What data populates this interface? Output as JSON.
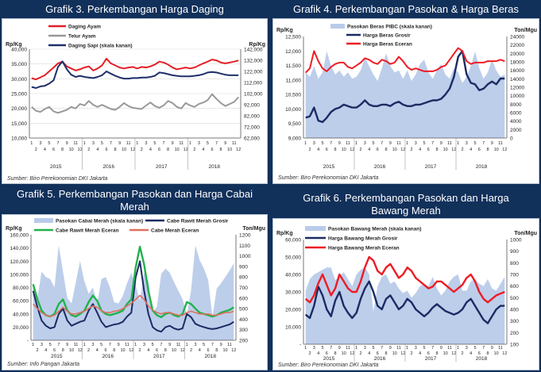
{
  "months": [
    "1",
    "2",
    "3",
    "4",
    "5",
    "6",
    "7",
    "8",
    "9",
    "10",
    "11",
    "12",
    "1",
    "2",
    "3",
    "4",
    "5",
    "6",
    "7",
    "8",
    "9",
    "10",
    "11",
    "12",
    "1",
    "2",
    "3",
    "4",
    "5",
    "6",
    "7",
    "8",
    "9",
    "10",
    "11",
    "12",
    "1",
    "2",
    "3",
    "4",
    "5",
    "6",
    "7",
    "8",
    "9",
    "10",
    "11",
    "12"
  ],
  "years": [
    "2015",
    "2016",
    "2017",
    "2018"
  ],
  "colors": {
    "background": "#11305a",
    "ayam": "#e41f26",
    "telur": "#999999",
    "sapi": "#1f2f6b",
    "pasokan": "#b9cbea",
    "grosir": "#1b2b63",
    "eceran": "#ee1c24",
    "rawit": "#1b2b63",
    "keriting": "#22b24c",
    "cabe_eceran": "#e07060",
    "bawang_grosir": "#1b2b63",
    "bawang_eceran": "#ee1c24"
  },
  "chart_data": [
    {
      "type": "line",
      "title": "Grafik 3. Perkembangan Harga Daging",
      "ylabel": "Rp/Kg",
      "y2label": "Rp/Kg",
      "source": "Sumber: Biro Perekonomian DKI Jakarta",
      "ylim": [
        10000,
        40000
      ],
      "yticks": [
        "10,000",
        "15,000",
        "20,000",
        "25,000",
        "30,000",
        "35,000",
        "40,000"
      ],
      "y2lim": [
        62000,
        142000
      ],
      "y2ticks": [
        "62,000",
        "72,000",
        "82,000",
        "92,000",
        "102,000",
        "112,000",
        "122,000",
        "132,000",
        "142,000"
      ],
      "series": [
        {
          "name": "Daging Ayam",
          "axis": "left",
          "values": [
            30200,
            29800,
            30500,
            31200,
            32500,
            33800,
            35200,
            35800,
            34200,
            33500,
            32800,
            33200,
            33800,
            34200,
            32800,
            33500,
            34500,
            36800,
            35200,
            34500,
            33800,
            33500,
            33800,
            34000,
            33500,
            34000,
            33800,
            34200,
            34800,
            35800,
            35500,
            34800,
            33800,
            33200,
            33500,
            33800,
            33500,
            33800,
            34500,
            35200,
            35800,
            36500,
            36200,
            35500,
            35200,
            35500,
            35800,
            36200
          ]
        },
        {
          "name": "Telur Ayam",
          "axis": "left",
          "values": [
            20500,
            19200,
            18800,
            19800,
            20500,
            19000,
            18500,
            19000,
            19500,
            20500,
            20000,
            21500,
            21000,
            22500,
            21200,
            20500,
            21200,
            20500,
            19800,
            19500,
            20500,
            21800,
            20800,
            20200,
            20000,
            19800,
            21000,
            22000,
            20800,
            20200,
            21000,
            22500,
            21800,
            20500,
            20000,
            21800,
            21000,
            20500,
            21500,
            22000,
            22800,
            24800,
            23200,
            21800,
            20800,
            21500,
            22200,
            23800
          ]
        },
        {
          "name": "Daging Sapi (skala kanan)",
          "axis": "right",
          "values": [
            108000,
            107000,
            108500,
            109000,
            111000,
            114000,
            126000,
            131000,
            124000,
            119000,
            117000,
            118000,
            117000,
            116500,
            116000,
            117000,
            118500,
            122000,
            120000,
            118000,
            116500,
            115500,
            115500,
            116000,
            116000,
            116500,
            116500,
            117000,
            118000,
            121000,
            120500,
            119500,
            118500,
            118000,
            117500,
            117500,
            117500,
            118000,
            118500,
            119500,
            121000,
            121500,
            121000,
            120000,
            119000,
            118500,
            118500,
            118500
          ]
        }
      ]
    },
    {
      "type": "line",
      "title": "Grafik 4. Perkembangan Pasokan & Harga Beras",
      "ylabel": "Rp/Kg",
      "y2label": "Ton/Mgu",
      "source": "Sumber: Biro Perekonomian DKI Jakarta",
      "ylim": [
        9000,
        12500
      ],
      "yticks": [
        "9,000",
        "9,500",
        "10,000",
        "10,500",
        "11,000",
        "11,500",
        "12,000",
        "12,500"
      ],
      "y2lim": [
        0,
        24000
      ],
      "y2ticks": [
        "0",
        "2000",
        "4000",
        "6000",
        "8000",
        "10000",
        "12000",
        "14000",
        "16000",
        "18000",
        "20000",
        "22000",
        "24000"
      ],
      "series": [
        {
          "name": "Pasokan Beras PIBC (skala kanan)",
          "axis": "right",
          "type": "area",
          "values": [
            15500,
            14500,
            17000,
            14000,
            15500,
            20500,
            17000,
            15000,
            16000,
            14500,
            15500,
            14000,
            14500,
            16000,
            19000,
            17000,
            15000,
            13500,
            16500,
            20000,
            17000,
            15500,
            16000,
            14000,
            16000,
            13500,
            15000,
            17500,
            18500,
            15500,
            14000,
            16000,
            17500,
            15000,
            14000,
            16500,
            15500,
            13000,
            14500,
            17000,
            20500,
            16500,
            14000,
            15500,
            18500,
            16000,
            14500,
            15000
          ]
        },
        {
          "name": "Harga Beras Grosir",
          "axis": "left",
          "values": [
            9700,
            9750,
            10050,
            9600,
            9550,
            9700,
            9900,
            10000,
            10050,
            10150,
            10100,
            10050,
            10050,
            10150,
            10300,
            10150,
            10100,
            10100,
            10150,
            10150,
            10100,
            10200,
            10250,
            10150,
            10100,
            10100,
            10150,
            10150,
            10200,
            10250,
            10300,
            10300,
            10350,
            10500,
            10700,
            11100,
            11800,
            12000,
            11200,
            10900,
            10850,
            10650,
            10700,
            10850,
            10950,
            10850,
            11050,
            11050
          ]
        },
        {
          "name": "Harga Beras Eceran",
          "axis": "left",
          "values": [
            11250,
            11400,
            12000,
            11650,
            11400,
            11300,
            11450,
            11550,
            11600,
            11600,
            11450,
            11400,
            11500,
            11600,
            11750,
            11700,
            11600,
            11550,
            11700,
            11650,
            11550,
            11600,
            11800,
            11650,
            11450,
            11350,
            11400,
            11350,
            11300,
            11300,
            11300,
            11350,
            11450,
            11500,
            11700,
            11900,
            12100,
            12000,
            11650,
            11550,
            11600,
            11600,
            11600,
            11650,
            11650,
            11650,
            11700,
            11650
          ]
        }
      ]
    },
    {
      "type": "line",
      "title": "Grafik 5. Perkembangan Pasokan dan Harga Cabai Merah",
      "ylabel": "Rp/Kg",
      "y2label": "Ton/Mgu",
      "source": "Sumber: Info Pangan Jakarta",
      "ylim": [
        0,
        160000
      ],
      "yticks": [
        "-",
        "20,000",
        "40,000",
        "60,000",
        "80,000",
        "100,000",
        "120,000",
        "140,000",
        "160,000"
      ],
      "y2lim": [
        200,
        1200
      ],
      "y2ticks": [
        "200",
        "300",
        "400",
        "500",
        "600",
        "700",
        "800",
        "900",
        "1000",
        "1100",
        "1200"
      ],
      "series": [
        {
          "name": "Pasokan Cabai Merah (skala kanan)",
          "axis": "right",
          "type": "area",
          "values": [
            720,
            600,
            850,
            800,
            780,
            700,
            1100,
            850,
            600,
            550,
            750,
            950,
            760,
            640,
            700,
            550,
            780,
            800,
            700,
            560,
            550,
            620,
            740,
            840,
            720,
            580,
            840,
            760,
            460,
            520,
            830,
            880,
            840,
            750,
            670,
            590,
            440,
            680,
            1100,
            960,
            880,
            770,
            420,
            690,
            740,
            800,
            860,
            930
          ]
        },
        {
          "name": "Cabe Rawit Merah Grosir",
          "axis": "left",
          "values": [
            75000,
            50000,
            30000,
            22000,
            18000,
            20000,
            40000,
            48000,
            30000,
            22000,
            25000,
            28000,
            30000,
            45000,
            55000,
            42000,
            28000,
            20000,
            22000,
            24000,
            25000,
            28000,
            36000,
            42000,
            95000,
            120000,
            75000,
            40000,
            20000,
            15000,
            13000,
            20000,
            22000,
            18000,
            16000,
            18000,
            40000,
            35000,
            25000,
            22000,
            20000,
            18000,
            17000,
            18000,
            20000,
            22000,
            24000,
            28000
          ]
        },
        {
          "name": "Cabe Rawit Merah Eceran",
          "axis": "left",
          "values": [
            85000,
            62000,
            45000,
            38000,
            36000,
            40000,
            55000,
            62000,
            45000,
            38000,
            36000,
            40000,
            45000,
            58000,
            68000,
            60000,
            45000,
            40000,
            38000,
            40000,
            42000,
            45000,
            55000,
            62000,
            110000,
            142000,
            115000,
            75000,
            45000,
            38000,
            35000,
            40000,
            42000,
            38000,
            36000,
            40000,
            58000,
            55000,
            48000,
            42000,
            40000,
            38000,
            36000,
            38000,
            42000,
            44000,
            46000,
            50000
          ]
        },
        {
          "name": "Cabe Merah Eceran",
          "axis": "left",
          "values": [
            55000,
            48000,
            42000,
            38000,
            36000,
            38000,
            44000,
            50000,
            44000,
            40000,
            40000,
            42000,
            44000,
            48000,
            52000,
            50000,
            45000,
            42000,
            42000,
            44000,
            45000,
            48000,
            52000,
            56000,
            62000,
            68000,
            62000,
            52000,
            46000,
            42000,
            40000,
            42000,
            42000,
            40000,
            38000,
            38000,
            42000,
            44000,
            42000,
            40000,
            40000,
            40000,
            38000,
            38000,
            40000,
            42000,
            42000,
            44000
          ]
        }
      ]
    },
    {
      "type": "line",
      "title": "Grafik 6. Perkembangan Pasokan dan Harga Bawang Merah",
      "ylabel": "Rp/Kg",
      "y2label": "Ton/Mgu",
      "source": "Sumber: Biro Perekonomian DKI Jakarta",
      "ylim": [
        0,
        60000
      ],
      "yticks": [
        "-",
        "10,000",
        "20,000",
        "30,000",
        "40,000",
        "50,000",
        "60,000"
      ],
      "y2lim": [
        100,
        1000
      ],
      "y2ticks": [
        "100",
        "200",
        "300",
        "400",
        "500",
        "600",
        "700",
        "800",
        "900",
        "1000"
      ],
      "series": [
        {
          "name": "Pasokan Bawang Merah (skala kanan)",
          "axis": "right",
          "type": "area",
          "values": [
            560,
            660,
            700,
            720,
            740,
            760,
            760,
            650,
            680,
            720,
            660,
            600,
            700,
            740,
            760,
            700,
            380,
            600,
            680,
            700,
            620,
            640,
            580,
            540,
            560,
            500,
            540,
            600,
            620,
            600,
            680,
            580,
            520,
            560,
            640,
            680,
            700,
            560,
            560,
            640,
            660,
            620,
            600,
            660,
            580,
            560,
            620,
            680
          ]
        },
        {
          "name": "Harga Bawang Merah Grosir",
          "axis": "left",
          "values": [
            17000,
            15000,
            22000,
            33000,
            28000,
            20000,
            16000,
            25000,
            30000,
            22000,
            18000,
            15000,
            18000,
            26000,
            32000,
            36000,
            30000,
            22000,
            20000,
            26000,
            28000,
            24000,
            20000,
            22000,
            26000,
            24000,
            20000,
            18000,
            16000,
            18000,
            21000,
            23000,
            21000,
            19000,
            18000,
            17000,
            18000,
            20000,
            24000,
            26000,
            22000,
            18000,
            14000,
            12000,
            16000,
            20000,
            22000,
            22000
          ]
        },
        {
          "name": "Harga Bawang Merah Eceran",
          "axis": "left",
          "values": [
            26000,
            24000,
            28000,
            35000,
            40000,
            34000,
            28000,
            32000,
            40000,
            36000,
            32000,
            30000,
            30000,
            36000,
            44000,
            50000,
            48000,
            42000,
            40000,
            44000,
            46000,
            42000,
            38000,
            40000,
            44000,
            42000,
            38000,
            36000,
            34000,
            32000,
            33000,
            36000,
            36000,
            34000,
            32000,
            30000,
            32000,
            34000,
            38000,
            40000,
            36000,
            30000,
            26000,
            24000,
            26000,
            28000,
            29000,
            30000
          ]
        }
      ]
    }
  ]
}
